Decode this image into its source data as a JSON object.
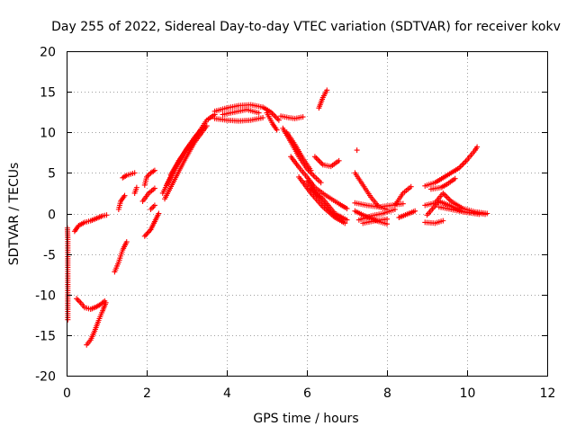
{
  "chart_data": {
    "type": "scatter",
    "title": "Day 255 of 2022, Sidereal Day-to-day VTEC variation (SDTVAR) for receiver kokv",
    "xlabel": "GPS time / hours",
    "ylabel": "SDTVAR / TECUs",
    "xlim": [
      0,
      12
    ],
    "ylim": [
      -20,
      20
    ],
    "xticks": [
      "0",
      "2",
      "4",
      "6",
      "8",
      "10",
      "12"
    ],
    "yticks": [
      "-20",
      "-15",
      "-10",
      "-5",
      "0",
      "5",
      "10",
      "15",
      "20"
    ],
    "grid": true,
    "marker": "+",
    "color": "#ff0000",
    "series": [
      {
        "name": "isolated-left-edge",
        "segments": [
          [
            [
              0.02,
              -1.8
            ],
            [
              0.03,
              -3.2
            ],
            [
              0.03,
              -8.5
            ],
            [
              0.03,
              -13.1
            ]
          ]
        ]
      },
      {
        "name": "arc-1",
        "segments": [
          [
            [
              0.2,
              -2.2
            ],
            [
              0.3,
              -1.5
            ],
            [
              0.45,
              -1.1
            ],
            [
              0.6,
              -0.9
            ],
            [
              0.75,
              -0.6
            ],
            [
              0.9,
              -0.3
            ],
            [
              1.0,
              -0.2
            ]
          ],
          [
            [
              0.25,
              -10.5
            ],
            [
              0.35,
              -11.0
            ],
            [
              0.45,
              -11.6
            ],
            [
              0.6,
              -11.8
            ],
            [
              0.75,
              -11.5
            ],
            [
              0.85,
              -11.2
            ],
            [
              0.95,
              -10.8
            ]
          ],
          [
            [
              0.5,
              -16.2
            ],
            [
              0.6,
              -15.6
            ],
            [
              0.7,
              -14.5
            ],
            [
              0.8,
              -13.2
            ],
            [
              0.9,
              -12.0
            ],
            [
              0.98,
              -11.0
            ]
          ]
        ]
      },
      {
        "name": "arc-2",
        "segments": [
          [
            [
              1.2,
              -7.2
            ],
            [
              1.3,
              -6.0
            ],
            [
              1.4,
              -4.5
            ],
            [
              1.5,
              -3.5
            ]
          ],
          [
            [
              1.3,
              0.5
            ],
            [
              1.35,
              1.5
            ],
            [
              1.45,
              2.2
            ]
          ],
          [
            [
              1.4,
              4.4
            ],
            [
              1.5,
              4.7
            ],
            [
              1.7,
              5.0
            ]
          ],
          [
            [
              1.7,
              2.5
            ],
            [
              1.75,
              3.2
            ]
          ],
          [
            [
              1.95,
              3.5
            ],
            [
              2.0,
              4.5
            ],
            [
              2.1,
              5.0
            ],
            [
              2.2,
              5.3
            ]
          ],
          [
            [
              1.9,
              1.5
            ],
            [
              2.05,
              2.5
            ],
            [
              2.2,
              3.1
            ]
          ],
          [
            [
              1.95,
              -2.8
            ],
            [
              2.1,
              -2.0
            ],
            [
              2.2,
              -1.0
            ],
            [
              2.3,
              0.0
            ]
          ],
          [
            [
              2.1,
              0.5
            ],
            [
              2.2,
              1.0
            ]
          ]
        ]
      },
      {
        "name": "rising-band",
        "segments": [
          [
            [
              2.4,
              2.5
            ],
            [
              2.7,
              5.5
            ],
            [
              3.0,
              8.0
            ],
            [
              3.3,
              10.0
            ],
            [
              3.5,
              11.5
            ],
            [
              3.7,
              12.2
            ]
          ],
          [
            [
              2.5,
              3.5
            ],
            [
              2.8,
              6.5
            ],
            [
              3.1,
              8.5
            ],
            [
              3.35,
              10.3
            ]
          ],
          [
            [
              2.6,
              4.8
            ],
            [
              2.9,
              7.2
            ],
            [
              3.2,
              9.4
            ],
            [
              3.45,
              10.8
            ]
          ],
          [
            [
              2.45,
              1.8
            ],
            [
              2.7,
              4.2
            ],
            [
              2.95,
              6.6
            ],
            [
              3.2,
              8.8
            ],
            [
              3.5,
              10.8
            ]
          ]
        ]
      },
      {
        "name": "peak",
        "segments": [
          [
            [
              3.7,
              12.6
            ],
            [
              4.0,
              13.0
            ],
            [
              4.3,
              13.3
            ],
            [
              4.6,
              13.4
            ],
            [
              4.9,
              13.1
            ],
            [
              5.1,
              12.5
            ],
            [
              5.3,
              11.5
            ]
          ],
          [
            [
              3.7,
              11.7
            ],
            [
              4.0,
              11.5
            ],
            [
              4.3,
              11.4
            ],
            [
              4.6,
              11.5
            ],
            [
              4.9,
              11.8
            ]
          ],
          [
            [
              3.9,
              12.2
            ],
            [
              4.2,
              12.5
            ],
            [
              4.5,
              12.8
            ],
            [
              4.8,
              12.4
            ]
          ],
          [
            [
              5.0,
              12.4
            ],
            [
              5.15,
              11.0
            ],
            [
              5.25,
              10.3
            ]
          ],
          [
            [
              5.35,
              12.0
            ],
            [
              5.55,
              11.8
            ],
            [
              5.7,
              11.7
            ],
            [
              5.9,
              11.9
            ]
          ]
        ]
      },
      {
        "name": "falling",
        "segments": [
          [
            [
              5.4,
              10.5
            ],
            [
              5.6,
              8.8
            ],
            [
              5.8,
              7.0
            ],
            [
              6.0,
              5.5
            ],
            [
              6.2,
              4.5
            ],
            [
              6.35,
              3.8
            ]
          ],
          [
            [
              5.5,
              10.0
            ],
            [
              5.7,
              8.5
            ],
            [
              5.9,
              6.8
            ],
            [
              6.1,
              5.3
            ]
          ],
          [
            [
              5.6,
              7.0
            ],
            [
              5.8,
              5.7
            ],
            [
              6.0,
              4.5
            ],
            [
              6.2,
              3.2
            ],
            [
              6.45,
              2.3
            ],
            [
              6.8,
              1.2
            ],
            [
              7.0,
              0.6
            ]
          ],
          [
            [
              5.8,
              4.5
            ],
            [
              6.1,
              2.5
            ],
            [
              6.4,
              0.8
            ],
            [
              6.7,
              -0.5
            ],
            [
              6.95,
              -1.2
            ]
          ],
          [
            [
              6.0,
              4.0
            ],
            [
              6.3,
              2.0
            ],
            [
              6.6,
              0.2
            ],
            [
              6.9,
              -1.0
            ]
          ],
          [
            [
              6.1,
              3.0
            ],
            [
              6.4,
              1.8
            ],
            [
              6.7,
              0.0
            ],
            [
              7.0,
              -0.8
            ]
          ],
          [
            [
              6.2,
              7.0
            ],
            [
              6.4,
              6.0
            ],
            [
              6.6,
              5.8
            ],
            [
              6.8,
              6.5
            ]
          ],
          [
            [
              6.3,
              13.0
            ],
            [
              6.4,
              14.3
            ],
            [
              6.5,
              15.2
            ]
          ],
          [
            [
              7.25,
              7.8
            ]
          ]
        ]
      },
      {
        "name": "late",
        "segments": [
          [
            [
              7.2,
              5.0
            ],
            [
              7.4,
              3.5
            ],
            [
              7.6,
              2.0
            ],
            [
              7.8,
              0.8
            ],
            [
              8.0,
              0.5
            ]
          ],
          [
            [
              7.2,
              0.3
            ],
            [
              7.4,
              -0.2
            ],
            [
              7.6,
              -0.6
            ],
            [
              7.8,
              -1.0
            ],
            [
              8.0,
              -1.3
            ]
          ],
          [
            [
              7.2,
              1.3
            ],
            [
              7.5,
              1.0
            ],
            [
              7.8,
              0.8
            ],
            [
              8.1,
              1.0
            ],
            [
              8.4,
              1.2
            ]
          ],
          [
            [
              7.3,
              -0.8
            ],
            [
              7.6,
              -0.3
            ],
            [
              7.9,
              0.0
            ],
            [
              8.2,
              0.5
            ]
          ],
          [
            [
              7.4,
              -1.2
            ],
            [
              7.7,
              -0.9
            ],
            [
              8.0,
              -0.7
            ]
          ],
          [
            [
              8.2,
              1.0
            ],
            [
              8.4,
              2.5
            ],
            [
              8.6,
              3.3
            ]
          ],
          [
            [
              8.3,
              -0.5
            ],
            [
              8.5,
              -0.1
            ],
            [
              8.7,
              0.3
            ]
          ],
          [
            [
              8.95,
              3.4
            ],
            [
              9.2,
              3.8
            ],
            [
              9.4,
              4.4
            ],
            [
              9.6,
              5.0
            ],
            [
              9.8,
              5.6
            ],
            [
              10.0,
              6.6
            ],
            [
              10.2,
              7.8
            ],
            [
              10.25,
              8.2
            ]
          ],
          [
            [
              8.95,
              1.0
            ],
            [
              9.2,
              1.3
            ],
            [
              9.4,
              2.5
            ],
            [
              9.6,
              1.5
            ],
            [
              9.9,
              0.6
            ],
            [
              10.2,
              0.2
            ],
            [
              10.5,
              0.0
            ]
          ],
          [
            [
              8.95,
              -1.1
            ],
            [
              9.2,
              -1.2
            ],
            [
              9.4,
              -0.9
            ]
          ],
          [
            [
              9.0,
              -0.2
            ],
            [
              9.3,
              1.5
            ],
            [
              9.6,
              0.9
            ],
            [
              9.9,
              0.2
            ],
            [
              10.3,
              -0.1
            ]
          ],
          [
            [
              9.3,
              0.8
            ],
            [
              9.6,
              0.5
            ],
            [
              9.9,
              0.2
            ],
            [
              10.2,
              0.1
            ],
            [
              10.45,
              -0.1
            ]
          ],
          [
            [
              9.1,
              3.0
            ],
            [
              9.35,
              3.2
            ],
            [
              9.5,
              3.6
            ],
            [
              9.7,
              4.3
            ]
          ]
        ]
      }
    ]
  }
}
